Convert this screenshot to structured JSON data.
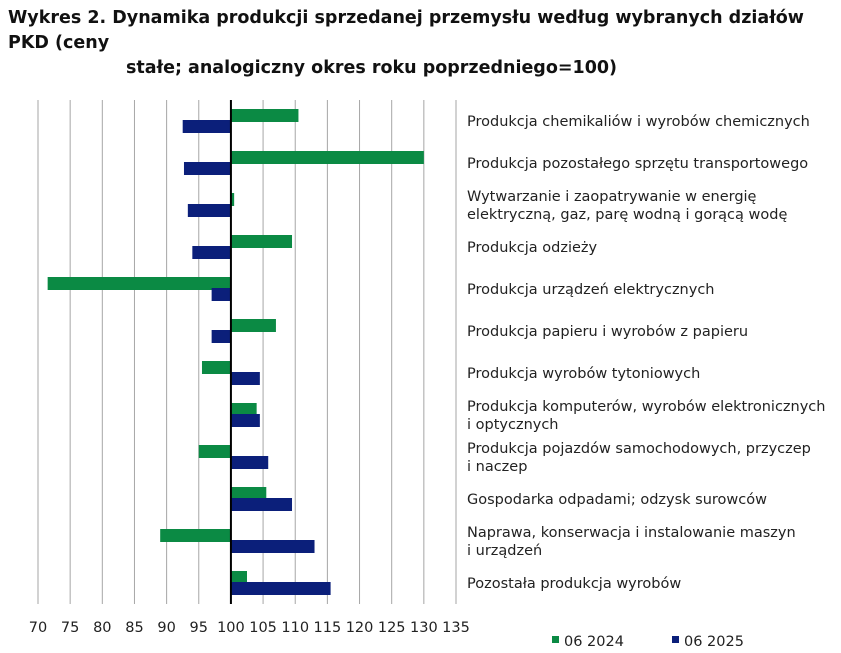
{
  "title_line1": "Wykres 2. Dynamika produkcji sprzedanej przemysłu według wybranych działów PKD (ceny",
  "title_line2": "stałe; analogiczny okres roku poprzedniego=100)",
  "colors": {
    "s2024": "#0b8a44",
    "s2025": "#0b1f7a",
    "grid": "#a6a6a6",
    "axis": "#000000"
  },
  "chart_data": {
    "type": "bar",
    "orientation": "horizontal",
    "baseline": 100,
    "xlim": [
      70,
      135
    ],
    "xticks": [
      70,
      75,
      80,
      85,
      90,
      95,
      100,
      105,
      110,
      115,
      120,
      125,
      130,
      135
    ],
    "grid": true,
    "legend_position": "bottom-right",
    "categories": [
      [
        "Produkcja chemikaliów i wyrobów chemicznych"
      ],
      [
        "Produkcja pozostałego sprzętu transportowego"
      ],
      [
        "Wytwarzanie i zaopatrywanie w energię",
        "elektryczną, gaz, parę wodną i gorącą wodę"
      ],
      [
        "Produkcja odzieży"
      ],
      [
        "Produkcja urządzeń elektrycznych"
      ],
      [
        "Produkcja papieru i wyrobów z papieru"
      ],
      [
        "Produkcja wyrobów tytoniowych"
      ],
      [
        "Produkcja komputerów, wyrobów elektronicznych",
        "i optycznych"
      ],
      [
        "Produkcja pojazdów samochodowych, przyczep",
        "i naczep"
      ],
      [
        "Gospodarka odpadami; odzysk surowców"
      ],
      [
        "Naprawa, konserwacja i instalowanie maszyn",
        "i urządzeń"
      ],
      [
        "Pozostała produkcja wyrobów"
      ]
    ],
    "series": [
      {
        "name": "06 2024",
        "values": [
          110.5,
          130.0,
          100.5,
          109.5,
          71.5,
          107.0,
          95.5,
          104.0,
          95.0,
          105.5,
          89.0,
          102.5
        ]
      },
      {
        "name": "06 2025",
        "values": [
          92.5,
          92.7,
          93.3,
          94.0,
          97.0,
          97.0,
          104.5,
          104.5,
          105.8,
          109.5,
          113.0,
          115.5
        ]
      }
    ]
  }
}
